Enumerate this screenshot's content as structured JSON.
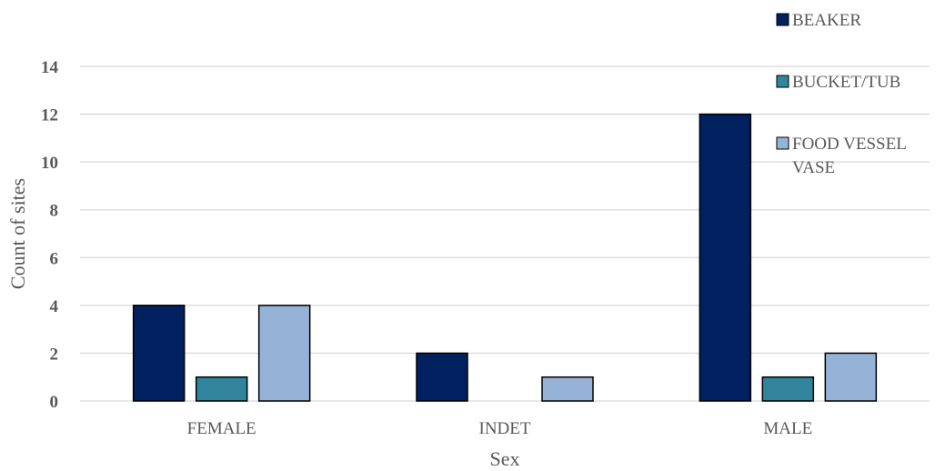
{
  "chart_data": {
    "type": "bar",
    "categories": [
      "FEMALE",
      "INDET",
      "MALE"
    ],
    "series": [
      {
        "name": "BEAKER",
        "values": [
          4,
          2,
          12
        ],
        "color": "#002060"
      },
      {
        "name": "BUCKET/TUB",
        "values": [
          1,
          0,
          1
        ],
        "color": "#31849b"
      },
      {
        "name": "FOOD VESSEL VASE",
        "values": [
          4,
          1,
          2
        ],
        "color": "#95b3d7"
      }
    ],
    "legend_lines": [
      [
        "BEAKER"
      ],
      [
        "BUCKET/TUB"
      ],
      [
        "FOOD VESSEL",
        "VASE"
      ]
    ],
    "xlabel": "Sex",
    "ylabel": "Count of sites",
    "ylim": [
      0,
      14
    ],
    "yticks": [
      0,
      2,
      4,
      6,
      8,
      10,
      12,
      14
    ],
    "grid": true,
    "legend_position": "top-right"
  }
}
